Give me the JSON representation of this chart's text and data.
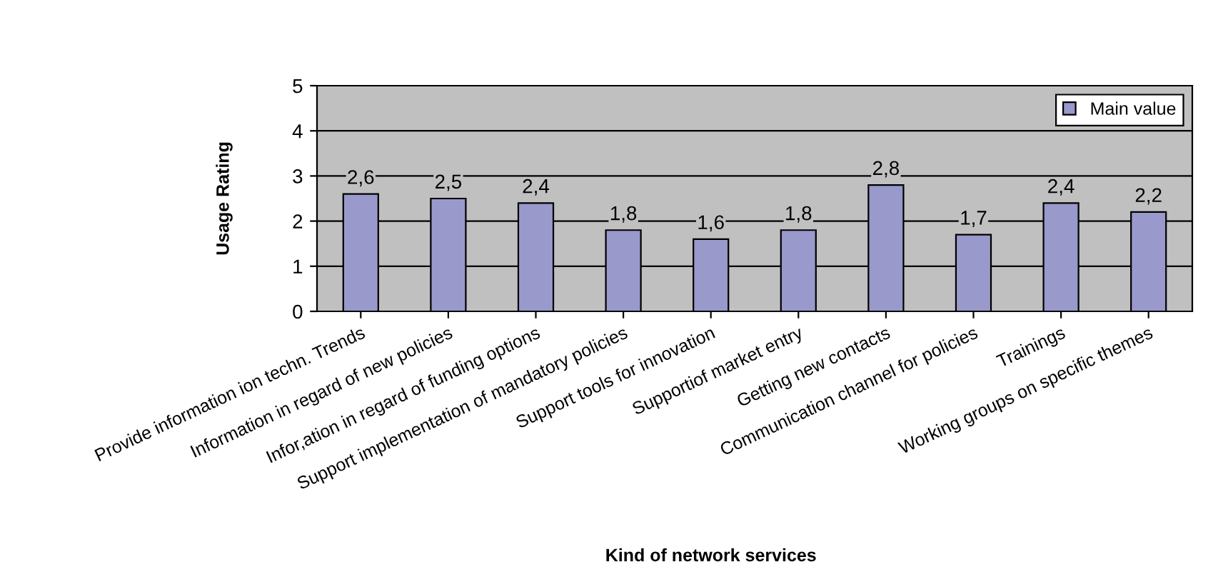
{
  "chart_data": {
    "type": "bar",
    "xlabel": "Kind of network services",
    "ylabel": "Usage Rating",
    "categories": [
      "Provide information ion techn. Trends",
      "Information in regard of new policies",
      "Infor,ation in regard of funding options",
      "Support implementation of mandatory policies",
      "Support tools for innovation",
      "Supportiof market entry",
      "Getting new contacts",
      "Communication channel for policies",
      "Trainings",
      "Working groups on specific themes"
    ],
    "series": [
      {
        "name": "Main value",
        "color": "#9999cc",
        "values": [
          2.6,
          2.5,
          2.4,
          1.8,
          1.6,
          1.8,
          2.8,
          1.7,
          2.4,
          2.2
        ],
        "value_labels": [
          "2,6",
          "2,5",
          "2,4",
          "1,8",
          "1,6",
          "1,8",
          "2,8",
          "1,7",
          "2,4",
          "2,2"
        ]
      }
    ],
    "ylim": [
      0,
      5
    ],
    "yticks": [
      0,
      1,
      2,
      3,
      4,
      5
    ],
    "grid": "y",
    "legend": "top right"
  }
}
